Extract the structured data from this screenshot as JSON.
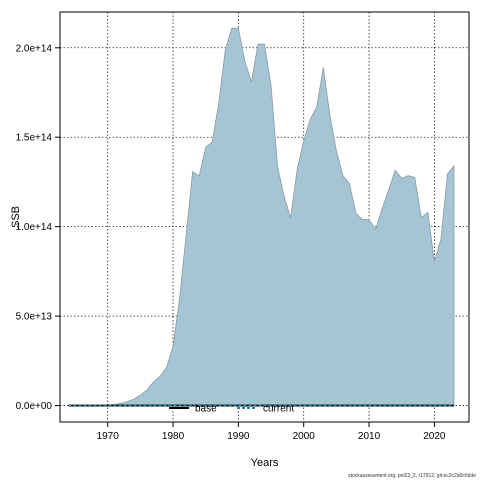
{
  "chart_data": {
    "type": "area",
    "xlabel": "Years",
    "ylabel": "SSB",
    "xlim": [
      1962.7,
      2025.3
    ],
    "ylim": [
      -9200000000000.0,
      220000000000000.0
    ],
    "grid": true,
    "x_ticks": [
      1970,
      1980,
      1990,
      2000,
      2010,
      2020
    ],
    "y_ticks": [
      0,
      50000000000000.0,
      100000000000000.0,
      150000000000000.0,
      200000000000000.0
    ],
    "y_tick_labels": [
      "0.0e+00",
      "5.0e+13",
      "1.0e+14",
      "1.5e+14",
      "2.0e+14"
    ],
    "legend_position": "bottom-center",
    "series": [
      {
        "name": "current",
        "style": "filled-area",
        "fill": "#a5c4d4",
        "stroke": "#8c9ba3",
        "x": [
          1964,
          1965,
          1966,
          1967,
          1968,
          1969,
          1970,
          1971,
          1972,
          1973,
          1974,
          1975,
          1976,
          1977,
          1978,
          1979,
          1980,
          1981,
          1982,
          1983,
          1984,
          1985,
          1986,
          1987,
          1988,
          1989,
          1990,
          1991,
          1992,
          1993,
          1994,
          1995,
          1996,
          1997,
          1998,
          1999,
          2000,
          2001,
          2002,
          2003,
          2004,
          2005,
          2006,
          2007,
          2008,
          2009,
          2010,
          2011,
          2012,
          2013,
          2014,
          2015,
          2016,
          2017,
          2018,
          2019,
          2020,
          2021,
          2022,
          2023
        ],
        "y": [
          0,
          0,
          0,
          0,
          0,
          0,
          200000000000.0,
          600000000000.0,
          1200000000000.0,
          2200000000000.0,
          3600000000000.0,
          5800000000000.0,
          8700000000000.0,
          13200000000000.0,
          16300000000000.0,
          21200000000000.0,
          33200000000000.0,
          59800000000000.0,
          94800000000000.0,
          130800000000000.0,
          128400000000000.0,
          144500000000000.0,
          147400000000000.0,
          169000000000000.0,
          199000000000000.0,
          211000000000000.0,
          211000000000000.0,
          192300000000000.0,
          181000000000000.0,
          202000000000000.0,
          202000000000000.0,
          179000000000000.0,
          133500000000000.0,
          117000000000000.0,
          105000000000000.0,
          132000000000000.0,
          148000000000000.0,
          160000000000000.0,
          167000000000000.0,
          189000000000000.0,
          162500000000000.0,
          142500000000000.0,
          128500000000000.0,
          124000000000000.0,
          107500000000000.0,
          104000000000000.0,
          104000000000000.0,
          98500000000000.0,
          110000000000000.0,
          120500000000000.0,
          131500000000000.0,
          127000000000000.0,
          128500000000000.0,
          127500000000000.0,
          105000000000000.0,
          108000000000000.0,
          80500000000000.0,
          93000000000000.0,
          129500000000000.0,
          134000000000000.0
        ]
      },
      {
        "name": "base",
        "style": "line",
        "stroke": "#000000",
        "x": [
          1964,
          2023
        ],
        "y": [
          0,
          0
        ]
      }
    ],
    "legend": [
      {
        "label": "base",
        "line": "solid",
        "color": "#000000"
      },
      {
        "label": "current",
        "line": "dashed",
        "color": "#1f8fa8"
      }
    ]
  },
  "footer": "stockassessment.org, pol23_2, r17912, git:ec2c2a0c6dde"
}
